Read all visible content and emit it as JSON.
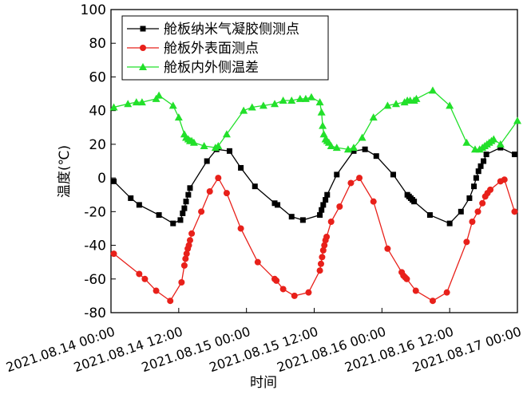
{
  "chart_data": {
    "type": "line",
    "x_label": "时间",
    "y_label": "温度(℃)",
    "xlim": [
      "2021-08-14T00:00",
      "2021-08-17T00:00"
    ],
    "xticks": [
      {
        "value": "2021-08-14T00:00",
        "label": "2021.08.14 00:00"
      },
      {
        "value": "2021-08-14T12:00",
        "label": "2021.08.14 12:00"
      },
      {
        "value": "2021-08-15T00:00",
        "label": "2021.08.15 00:00"
      },
      {
        "value": "2021-08-15T12:00",
        "label": "2021.08.15 12:00"
      },
      {
        "value": "2021-08-16T00:00",
        "label": "2021.08.16 00:00"
      },
      {
        "value": "2021-08-16T12:00",
        "label": "2021.08.16 12:00"
      },
      {
        "value": "2021-08-17T00:00",
        "label": "2021.08.17 00:00"
      }
    ],
    "ylim": [
      -80,
      100
    ],
    "yticks": [
      -80,
      -60,
      -40,
      -20,
      0,
      20,
      40,
      60,
      80,
      100
    ],
    "legend": "upper left",
    "series": [
      {
        "name": "舱板纳米气凝胶侧测点",
        "color": "#000000",
        "marker": "square",
        "x": [
          "2021-08-14T00:30",
          "2021-08-14T03:30",
          "2021-08-14T05:00",
          "2021-08-14T08:30",
          "2021-08-14T11:00",
          "2021-08-14T12:18",
          "2021-08-14T12:42",
          "2021-08-14T13:00",
          "2021-08-14T13:18",
          "2021-08-14T13:42",
          "2021-08-14T14:00",
          "2021-08-14T17:00",
          "2021-08-14T18:42",
          "2021-08-14T21:00",
          "2021-08-14T23:00",
          "2021-08-15T01:30",
          "2021-08-15T05:00",
          "2021-08-15T05:30",
          "2021-08-15T08:00",
          "2021-08-15T10:00",
          "2021-08-15T13:00",
          "2021-08-15T13:18",
          "2021-08-15T13:36",
          "2021-08-15T14:00",
          "2021-08-15T14:18",
          "2021-08-15T16:00",
          "2021-08-15T19:00",
          "2021-08-15T21:00",
          "2021-08-15T23:00",
          "2021-08-16T02:00",
          "2021-08-16T04:30",
          "2021-08-16T04:48",
          "2021-08-16T05:06",
          "2021-08-16T05:24",
          "2021-08-16T05:42",
          "2021-08-16T08:30",
          "2021-08-16T12:00",
          "2021-08-16T14:00",
          "2021-08-16T15:30",
          "2021-08-16T16:18",
          "2021-08-16T16:42",
          "2021-08-16T17:06",
          "2021-08-16T17:30",
          "2021-08-16T18:00",
          "2021-08-16T18:30",
          "2021-08-16T21:00",
          "2021-08-16T23:30"
        ],
        "values": [
          -2,
          -12,
          -16,
          -22,
          -27,
          -25,
          -21,
          -18,
          -14,
          -10,
          -6,
          10,
          17,
          16,
          6,
          -5,
          -15,
          -16,
          -23,
          -25,
          -22,
          -19,
          -16,
          -13,
          -10,
          2,
          16,
          17,
          13,
          2,
          -10,
          -11,
          -12,
          -13,
          -14,
          -22,
          -27,
          -20,
          -12,
          -5,
          0,
          4,
          7,
          10,
          14,
          18,
          14
        ]
      },
      {
        "name": "舱板外表面测点",
        "color": "#e8201a",
        "marker": "circle",
        "x": [
          "2021-08-14T00:30",
          "2021-08-14T05:00",
          "2021-08-14T06:00",
          "2021-08-14T08:00",
          "2021-08-14T10:30",
          "2021-08-14T12:30",
          "2021-08-14T13:00",
          "2021-08-14T13:12",
          "2021-08-14T13:24",
          "2021-08-14T13:36",
          "2021-08-14T13:48",
          "2021-08-14T14:00",
          "2021-08-14T14:18",
          "2021-08-14T16:00",
          "2021-08-14T17:30",
          "2021-08-14T19:00",
          "2021-08-14T20:30",
          "2021-08-14T23:00",
          "2021-08-15T02:00",
          "2021-08-15T05:00",
          "2021-08-15T05:18",
          "2021-08-15T06:30",
          "2021-08-15T08:30",
          "2021-08-15T11:00",
          "2021-08-15T13:00",
          "2021-08-15T13:12",
          "2021-08-15T13:24",
          "2021-08-15T13:36",
          "2021-08-15T13:48",
          "2021-08-15T14:00",
          "2021-08-15T14:12",
          "2021-08-15T15:00",
          "2021-08-15T16:30",
          "2021-08-15T18:30",
          "2021-08-15T20:00",
          "2021-08-15T22:30",
          "2021-08-16T01:00",
          "2021-08-16T03:30",
          "2021-08-16T03:48",
          "2021-08-16T04:06",
          "2021-08-16T04:24",
          "2021-08-16T06:00",
          "2021-08-16T09:00",
          "2021-08-16T11:30",
          "2021-08-16T15:00",
          "2021-08-16T16:00",
          "2021-08-16T17:00",
          "2021-08-16T17:48",
          "2021-08-16T18:18",
          "2021-08-16T18:42",
          "2021-08-16T19:12",
          "2021-08-16T21:00",
          "2021-08-16T21:42",
          "2021-08-16T23:30"
        ],
        "values": [
          -45,
          -57,
          -60,
          -67,
          -73,
          -62,
          -52,
          -48,
          -45,
          -42,
          -40,
          -37,
          -33,
          -20,
          -8,
          0,
          -9,
          -30,
          -50,
          -60,
          -61,
          -66,
          -70,
          -68,
          -55,
          -51,
          -47,
          -43,
          -40,
          -37,
          -35,
          -26,
          -17,
          -3,
          0,
          -14,
          -42,
          -56,
          -58,
          -59,
          -60,
          -67,
          -73,
          -68,
          -38,
          -26,
          -20,
          -15,
          -11,
          -9,
          -7,
          -2,
          -1,
          -20
        ]
      },
      {
        "name": "舱板内外侧温差",
        "color": "#22e02a",
        "marker": "triangle",
        "x": [
          "2021-08-14T00:30",
          "2021-08-14T03:00",
          "2021-08-14T04:30",
          "2021-08-14T05:30",
          "2021-08-14T08:00",
          "2021-08-14T08:30",
          "2021-08-14T11:00",
          "2021-08-14T12:00",
          "2021-08-14T13:00",
          "2021-08-14T13:18",
          "2021-08-14T13:42",
          "2021-08-14T14:00",
          "2021-08-14T14:18",
          "2021-08-14T14:42",
          "2021-08-14T16:30",
          "2021-08-14T18:30",
          "2021-08-14T19:00",
          "2021-08-14T20:30",
          "2021-08-14T23:30",
          "2021-08-15T01:00",
          "2021-08-15T03:00",
          "2021-08-15T05:00",
          "2021-08-15T06:30",
          "2021-08-15T08:00",
          "2021-08-15T09:30",
          "2021-08-15T10:30",
          "2021-08-15T11:30",
          "2021-08-15T13:00",
          "2021-08-15T13:18",
          "2021-08-15T13:30",
          "2021-08-15T13:42",
          "2021-08-15T14:00",
          "2021-08-15T14:18",
          "2021-08-15T14:36",
          "2021-08-15T15:00",
          "2021-08-15T16:00",
          "2021-08-15T18:00",
          "2021-08-15T19:00",
          "2021-08-15T20:30",
          "2021-08-15T22:30",
          "2021-08-16T01:00",
          "2021-08-16T02:30",
          "2021-08-16T04:00",
          "2021-08-16T04:30",
          "2021-08-16T05:00",
          "2021-08-16T05:42",
          "2021-08-16T06:06",
          "2021-08-16T09:00",
          "2021-08-16T12:00",
          "2021-08-16T15:00",
          "2021-08-16T16:30",
          "2021-08-16T17:18",
          "2021-08-16T17:48",
          "2021-08-16T18:12",
          "2021-08-16T18:36",
          "2021-08-16T19:00",
          "2021-08-16T19:24",
          "2021-08-16T19:48",
          "2021-08-16T21:00",
          "2021-08-17T00:00"
        ],
        "values": [
          42,
          44,
          45,
          45,
          47,
          49,
          43,
          36,
          26,
          24,
          23,
          22,
          22,
          21,
          19,
          18,
          19,
          26,
          40,
          42,
          43,
          44,
          46,
          46,
          47,
          47,
          48,
          45,
          39,
          31,
          26,
          23,
          22,
          21,
          19,
          18,
          17,
          18,
          24,
          36,
          43,
          44,
          45,
          46,
          46,
          46,
          47,
          52,
          43,
          21,
          17,
          17,
          18,
          19,
          20,
          21,
          22,
          23,
          20,
          34
        ]
      }
    ]
  }
}
